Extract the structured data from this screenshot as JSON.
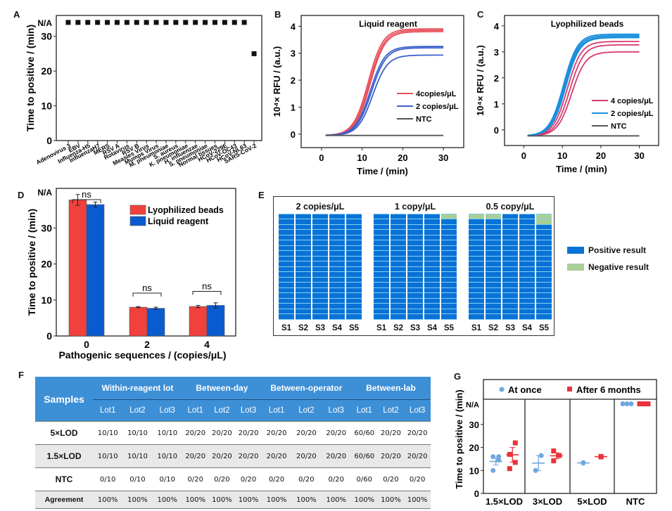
{
  "panel_labels": [
    "A",
    "B",
    "C",
    "D",
    "E",
    "F",
    "G"
  ],
  "chart_data": [
    {
      "id": "A",
      "type": "scatter",
      "title": "",
      "xlabel": "",
      "ylabel": "Time to positive / (min)",
      "ylim": [
        0,
        36
      ],
      "yticks": [
        0,
        10,
        20,
        30
      ],
      "ytick_extra": {
        "label": "N/A",
        "value": 34
      },
      "categories": [
        "Adenovirus 3",
        "EBV",
        "Influenza-H5",
        "InfluenzaH7",
        "MERS",
        "RSV A",
        "Rotavirus",
        "RSV B",
        "Measles Virus",
        "Mumps Virus",
        "M. pneumoniae",
        "S. aureus",
        "K. pneumoniae",
        "H. influenzae",
        "S. pneumoniae",
        "Normal tissues",
        "HCoV-229E",
        "HCoV-OC43",
        "HCoV-NL63",
        "SARS-CoV-2"
      ],
      "values": [
        "N/A",
        "N/A",
        "N/A",
        "N/A",
        "N/A",
        "N/A",
        "N/A",
        "N/A",
        "N/A",
        "N/A",
        "N/A",
        "N/A",
        "N/A",
        "N/A",
        "N/A",
        "N/A",
        "N/A",
        "N/A",
        "N/A",
        25
      ],
      "marker": "square",
      "color": "#111111"
    },
    {
      "id": "B",
      "type": "line",
      "title": "Liquid reagent",
      "xlabel": "Time / (min)",
      "ylabel": "10⁴× RFU / (a.u.)",
      "xlim": [
        -5,
        35
      ],
      "ylim": [
        -0.5,
        4.4
      ],
      "xticks": [
        0,
        10,
        20,
        30
      ],
      "yticks": [
        0,
        1,
        2,
        3,
        4
      ],
      "legend": [
        "4copies/μL",
        "2 copies/μL",
        "NTC"
      ],
      "legend_position": "center-right",
      "series": [
        {
          "name": "4copies/μL",
          "color": "#e8505b",
          "curves": [
            {
              "plateau": 3.9,
              "midpoint": 11.5
            },
            {
              "plateau": 3.85,
              "midpoint": 11.8
            },
            {
              "plateau": 3.8,
              "midpoint": 12.0
            }
          ]
        },
        {
          "name": "2 copies/μL",
          "color": "#3a5fcd",
          "curves": [
            {
              "plateau": 3.25,
              "midpoint": 12.0
            },
            {
              "plateau": 3.2,
              "midpoint": 12.3
            },
            {
              "plateau": 2.93,
              "midpoint": 12.6
            }
          ]
        },
        {
          "name": "NTC",
          "color": "#555555",
          "curves": [
            {
              "plateau": -0.05,
              "midpoint": 0
            }
          ]
        }
      ],
      "baseline": -0.05,
      "x_start": 1,
      "x_end": 30
    },
    {
      "id": "C",
      "type": "line",
      "title": "Lyophilized beads",
      "xlabel": "Time / (min)",
      "ylabel": "10⁴× RFU / (a.u.)",
      "xlim": [
        -5,
        35
      ],
      "ylim": [
        -0.6,
        4.4
      ],
      "xticks": [
        0,
        10,
        20,
        30
      ],
      "yticks": [
        0,
        1,
        2,
        3,
        4
      ],
      "legend": [
        "4 copies/μL",
        "2 copies/μL",
        "NTC"
      ],
      "legend_position": "center-right",
      "series": [
        {
          "name": "4 copies/μL",
          "color": "#d63a6e",
          "curves": [
            {
              "plateau": 3.4,
              "midpoint": 11.3
            },
            {
              "plateau": 3.27,
              "midpoint": 11.9
            },
            {
              "plateau": 3.0,
              "midpoint": 12.4
            }
          ]
        },
        {
          "name": "2 copies/μL",
          "color": "#1a8fdc",
          "curves": [
            {
              "plateau": 3.68,
              "midpoint": 10.3
            },
            {
              "plateau": 3.63,
              "midpoint": 10.5
            },
            {
              "plateau": 3.58,
              "midpoint": 10.7
            },
            {
              "plateau": 3.55,
              "midpoint": 10.9
            }
          ]
        },
        {
          "name": "NTC",
          "color": "#555555",
          "curves": [
            {
              "plateau": -0.23,
              "midpoint": 0
            }
          ]
        }
      ],
      "baseline": -0.23,
      "x_start": 1,
      "x_end": 30
    },
    {
      "id": "D",
      "type": "bar",
      "title": "",
      "xlabel": "Pathogenic sequences / (copies/μL)",
      "ylabel": "Time to positive / (min)",
      "ylim": [
        0,
        41
      ],
      "yticks": [
        0,
        10,
        20,
        30
      ],
      "ytick_extra": {
        "label": "N/A",
        "value": 40
      },
      "categories": [
        "0",
        "2",
        "4"
      ],
      "series": [
        {
          "name": "Lyophilized beads",
          "color": "#f0413c",
          "values": [
            37.8,
            8.0,
            8.2
          ],
          "errors": [
            1.5,
            0.15,
            0.3
          ]
        },
        {
          "name": "Liquid reagent",
          "color": "#0b5bd0",
          "values": [
            36.5,
            7.7,
            8.5
          ],
          "errors": [
            0.7,
            0.3,
            0.7
          ]
        }
      ],
      "annotations": [
        "ns",
        "ns",
        "ns"
      ],
      "legend_position": "top-right"
    },
    {
      "id": "E",
      "type": "heatmap",
      "groups": [
        {
          "title": "2 copies/μL",
          "negatives_per_column": [
            0,
            0,
            0,
            0,
            0
          ]
        },
        {
          "title": "1 copy/μL",
          "negatives_per_column": [
            0,
            0,
            0,
            0,
            1
          ]
        },
        {
          "title": "0.5 copy/μL",
          "negatives_per_column": [
            1,
            1,
            0,
            0,
            2
          ]
        }
      ],
      "columns": [
        "S1",
        "S2",
        "S3",
        "S4",
        "S5"
      ],
      "replicates_per_column": 20,
      "legend": [
        {
          "label": "Positive result",
          "color": "#0a72d6"
        },
        {
          "label": "Negative result",
          "color": "#a8cf96"
        }
      ]
    },
    {
      "id": "G",
      "type": "scatter",
      "ylabel": "Time to positive / (min)",
      "ylim": [
        0,
        41
      ],
      "yticks": [
        0,
        10,
        20,
        30
      ],
      "ytick_extra": {
        "label": "N/A",
        "value": 39
      },
      "categories": [
        "1.5×LOD",
        "3×LOD",
        "5×LOD",
        "NTC"
      ],
      "legend": [
        {
          "label": "At once",
          "color": "#6fa8e0",
          "marker": "circle"
        },
        {
          "label": "After 6 months",
          "color": "#e8333a",
          "marker": "square"
        }
      ],
      "legend_position": "top",
      "series": [
        {
          "name": "At once",
          "points": [
            [
              10.0,
              14.5,
              16.0,
              16.0
            ],
            [
              10.0,
              16.5
            ],
            [
              13.2,
              13.4
            ],
            [
              "N/A",
              "N/A",
              "N/A"
            ]
          ],
          "means": [
            13.9,
            13.2,
            13.3,
            null
          ],
          "errs": [
            1.5,
            3.3,
            0.1,
            null
          ]
        },
        {
          "name": "After 6 months",
          "points": [
            [
              10.8,
              13.5,
              17.0,
              22.0
            ],
            [
              14.2,
              16.5,
              18.5
            ],
            [
              15.9,
              16.1
            ],
            [
              "N/A",
              "N/A",
              "N/A"
            ]
          ],
          "means": [
            16.8,
            16.4,
            16.0,
            null
          ],
          "errs": [
            3.2,
            1.3,
            0.1,
            null
          ]
        }
      ]
    }
  ],
  "table_F": {
    "header_samples": "Samples",
    "groups": [
      "Within-reagent lot",
      "Between-day",
      "Between-operator",
      "Between-lab"
    ],
    "lots": [
      "Lot1",
      "Lot2",
      "Lot3",
      "Lot1",
      "Lot2",
      "Lot3",
      "Lot1",
      "Lot2",
      "Lot3",
      "Lot1",
      "Lot2",
      "Lot3"
    ],
    "rows": [
      {
        "label": "5×LOD",
        "values": [
          "10/10",
          "10/10",
          "10/10",
          "20/20",
          "20/20",
          "20/20",
          "20/20",
          "20/20",
          "20/20",
          "60/60",
          "20/20",
          "20/20"
        ]
      },
      {
        "label": "1.5×LOD",
        "values": [
          "10/10",
          "10/10",
          "10/10",
          "20/20",
          "20/20",
          "20/20",
          "20/20",
          "20/20",
          "20/20",
          "60/60",
          "20/20",
          "20/20"
        ]
      },
      {
        "label": "NTC",
        "values": [
          "0/10",
          "0/10",
          "0/10",
          "0/20",
          "0/20",
          "0/20",
          "0/20",
          "0/20",
          "0/20",
          "0/60",
          "0/20",
          "0/20"
        ]
      },
      {
        "label": "Agreement",
        "values": [
          "100%",
          "100%",
          "100%",
          "100%",
          "100%",
          "100%",
          "100%",
          "100%",
          "100%",
          "100%",
          "100%",
          "100%"
        ]
      }
    ]
  }
}
